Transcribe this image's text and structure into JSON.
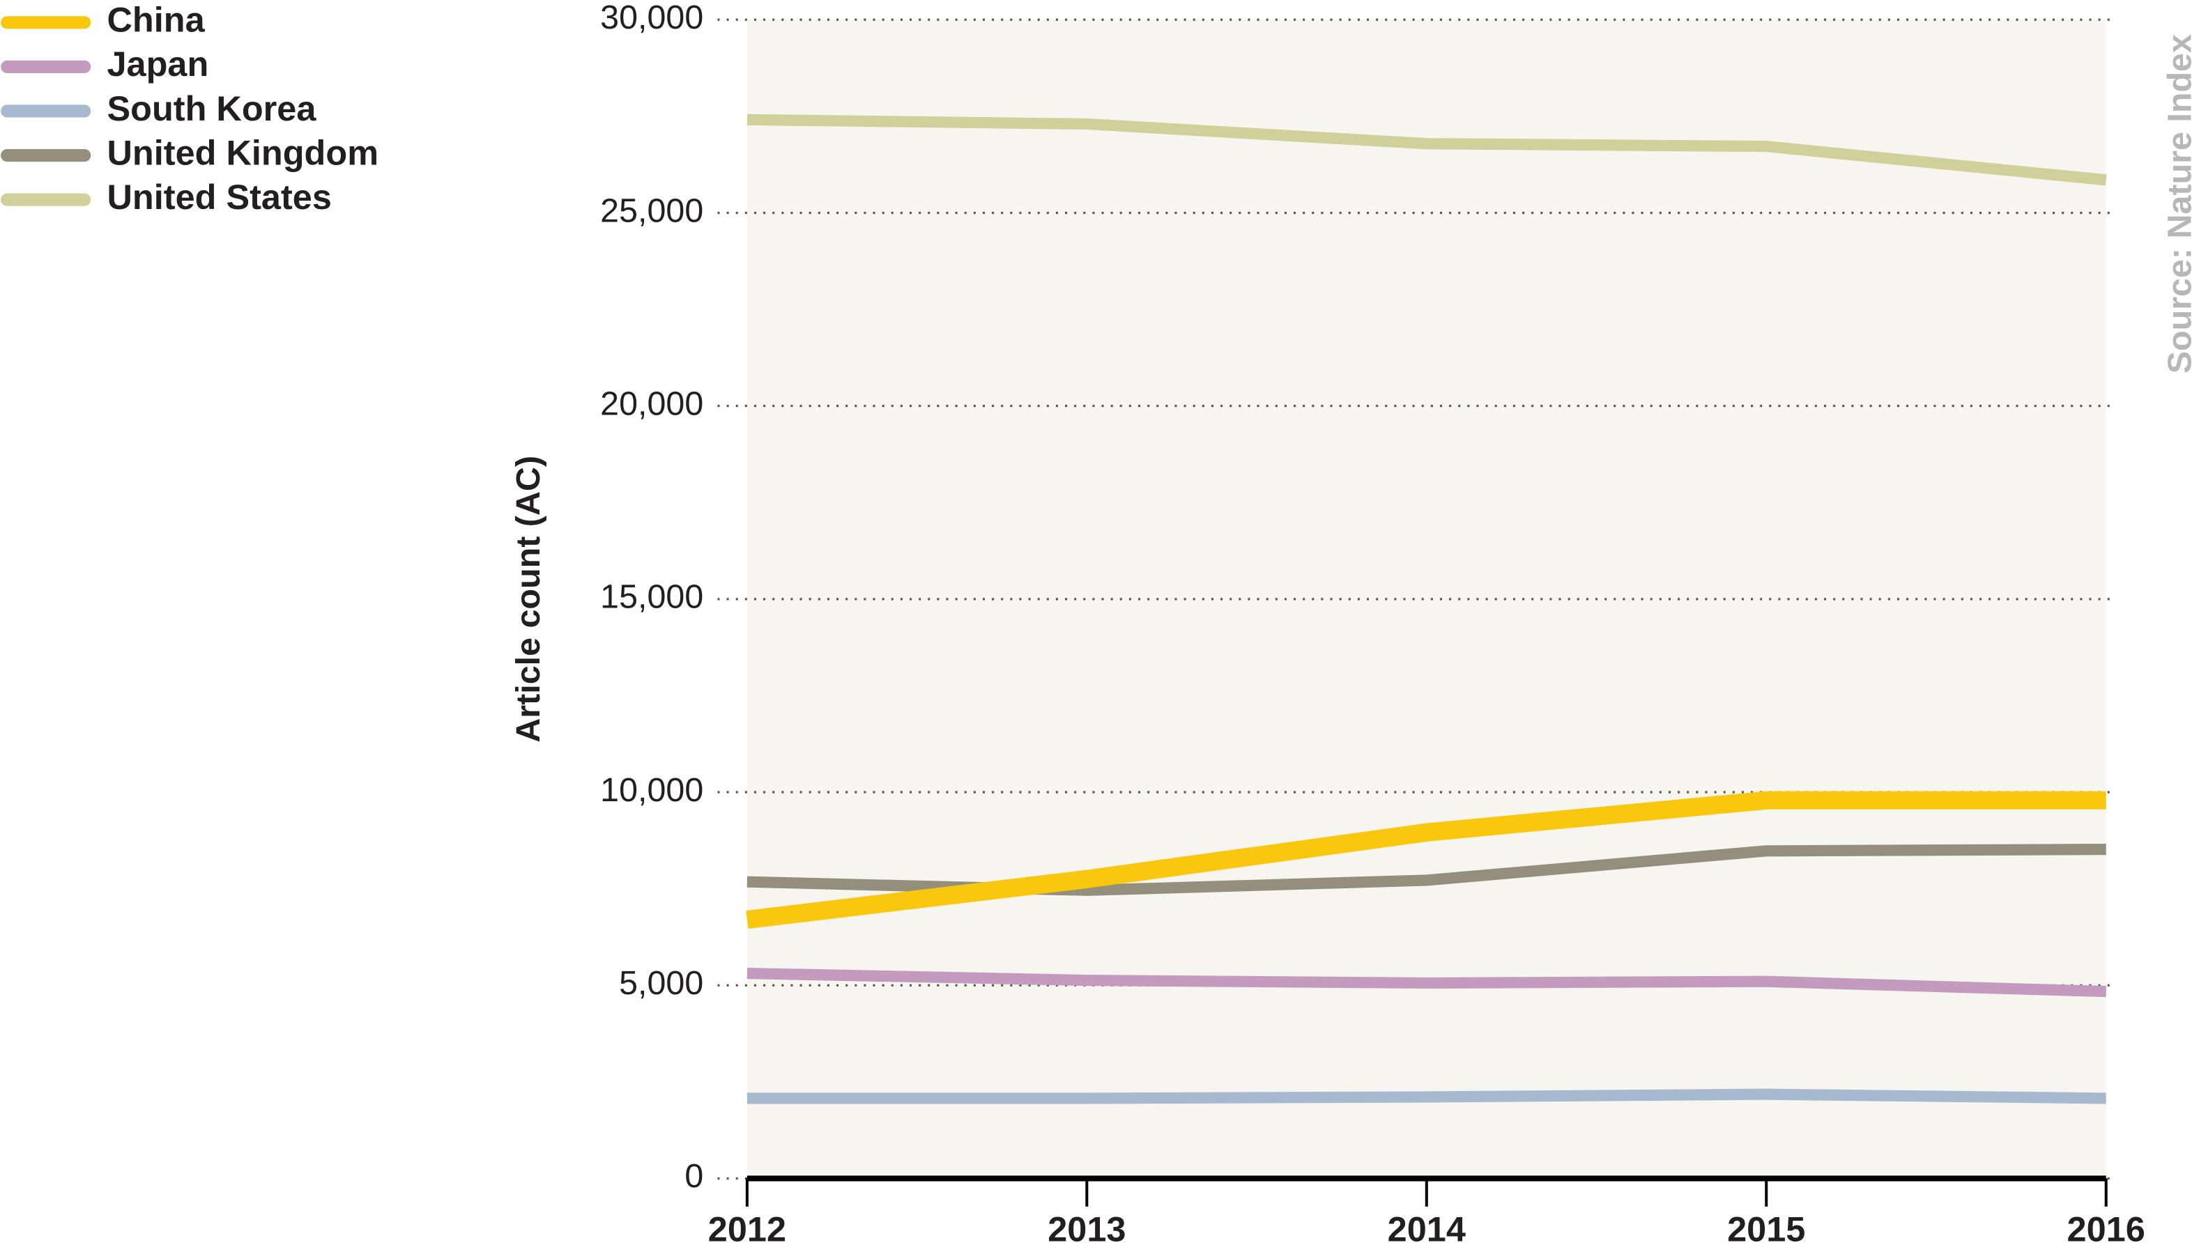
{
  "chart_data": {
    "type": "line",
    "y_label": "Article count (AC)",
    "source": "Source: Nature Index",
    "x": [
      2012,
      2013,
      2014,
      2015,
      2016
    ],
    "xlim": [
      2012,
      2016
    ],
    "xticks": [
      2012,
      2013,
      2014,
      2015,
      2016
    ],
    "ylim": [
      0,
      30000
    ],
    "yticks": [
      0,
      {
        "value": 5000,
        "label": "5,000"
      },
      {
        "value": 10000,
        "label": "10,000"
      },
      {
        "value": 15000,
        "label": "15,000"
      },
      {
        "value": 20000,
        "label": "20,000"
      },
      {
        "value": 25000,
        "label": "25,000"
      },
      {
        "value": 30000,
        "label": "30,000"
      }
    ],
    "grid": true,
    "legend": "top-left",
    "series": [
      {
        "name": "China",
        "color": "#f9c80e",
        "values": [
          6700,
          7750,
          8960,
          9790,
          9790
        ]
      },
      {
        "name": "Japan",
        "color": "#c49bbf",
        "values": [
          5310,
          5130,
          5060,
          5100,
          4840
        ]
      },
      {
        "name": "South Korea",
        "color": "#a6b9cf",
        "values": [
          2075,
          2075,
          2110,
          2180,
          2075
        ]
      },
      {
        "name": "United Kingdom",
        "color": "#948f7c",
        "values": [
          7680,
          7460,
          7720,
          8480,
          8520
        ]
      },
      {
        "name": "United States",
        "color": "#cfd09a",
        "values": [
          27410,
          27300,
          26790,
          26720,
          25850
        ]
      }
    ]
  }
}
